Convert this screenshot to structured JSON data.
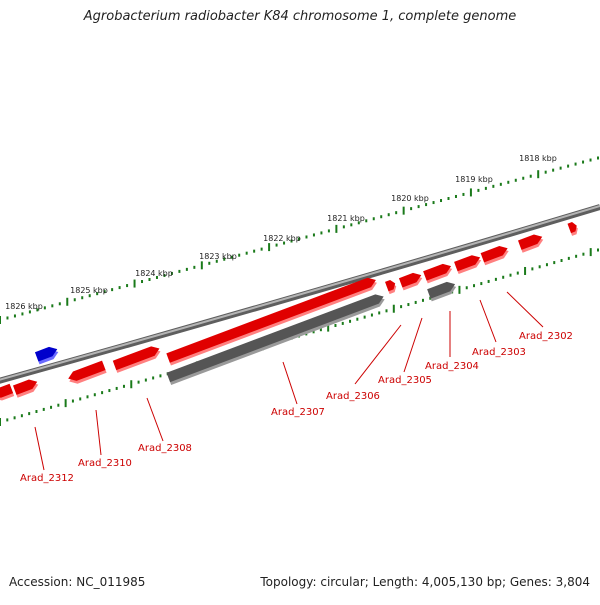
{
  "title": "Agrobacterium radiobacter K84 chromosome 1, complete genome",
  "footer": {
    "accession": "Accession: NC_011985",
    "summary": "Topology: circular; Length: 4,005,130 bp; Genes: 3,804"
  },
  "colors": {
    "forward_gene": "#e00000",
    "reverse_gene": "#e00000",
    "pseudo_gene": "#555555",
    "rna_gene": "#0000cc",
    "backbone": "#808080",
    "tick": "#1a7a1a",
    "label": "#cc0000"
  },
  "scale_labels": [
    "1818 kbp",
    "1819 kbp",
    "1820 kbp",
    "1821 kbp",
    "1822 kbp",
    "1823 kbp",
    "1824 kbp",
    "1825 kbp",
    "1826 kbp"
  ],
  "gene_labels": [
    "Arad_2302",
    "Arad_2303",
    "Arad_2304",
    "Arad_2305",
    "Arad_2306",
    "Arad_2307",
    "Arad_2308",
    "Arad_2310",
    "Arad_2312"
  ]
}
